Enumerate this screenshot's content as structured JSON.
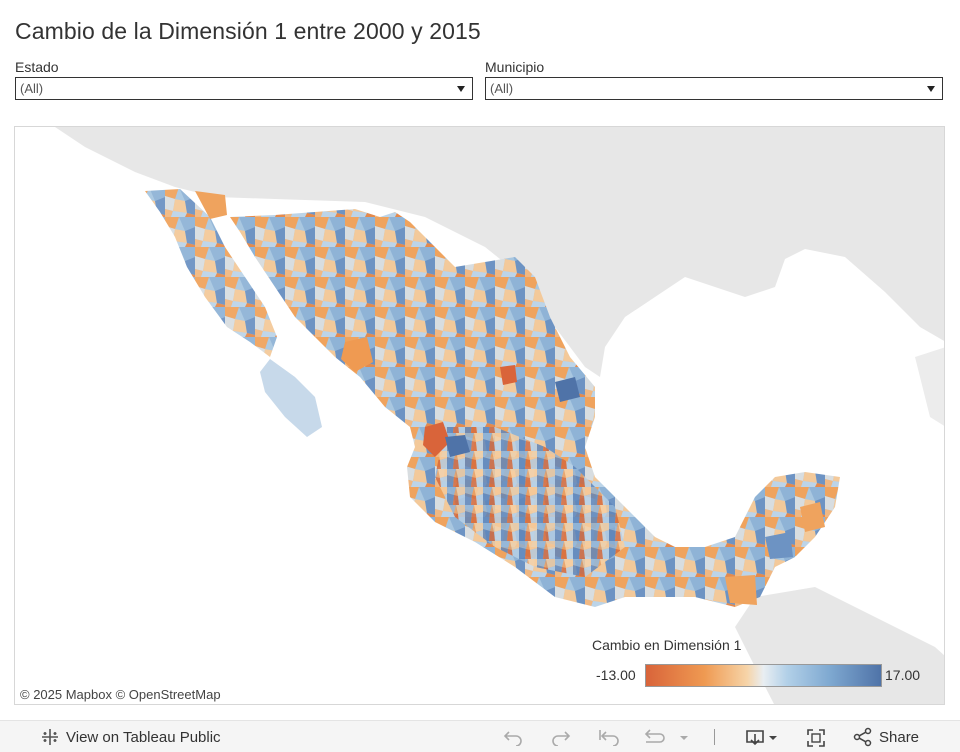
{
  "title": "Cambio de la Dimensión 1 entre 2000 y 2015",
  "filters": {
    "estado": {
      "label": "Estado",
      "value": "(All)"
    },
    "municipio": {
      "label": "Municipio",
      "value": "(All)"
    }
  },
  "map": {
    "attribution": "© 2025 Mapbox  © OpenStreetMap",
    "legend": {
      "title": "Cambio en Dimensión 1",
      "min": "-13.00",
      "max": "17.00",
      "colors": {
        "low": "#d9643a",
        "mid_low": "#ef9a52",
        "neutral": "#e9eef2",
        "mid_high": "#7fa9d1",
        "high": "#4f73a8"
      }
    }
  },
  "toolbar": {
    "view_label": "View on Tableau Public",
    "share_label": "Share",
    "icons": [
      "undo-icon",
      "redo-icon",
      "revert-icon",
      "refresh-icon",
      "download-icon",
      "fullscreen-icon",
      "share-icon"
    ]
  }
}
